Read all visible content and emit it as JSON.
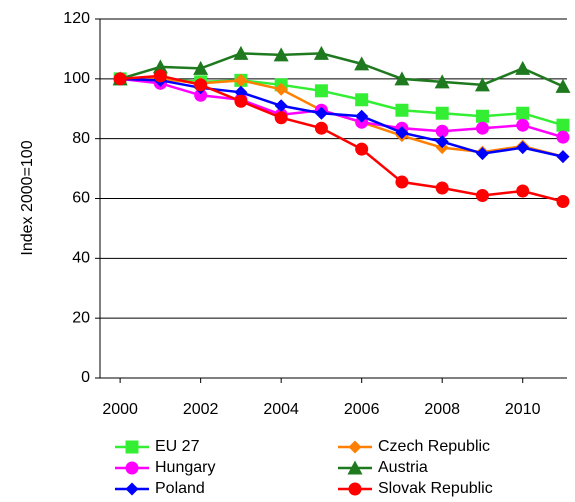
{
  "chart_data": {
    "type": "line",
    "y_label": "Index 2000=100",
    "x": [
      2000,
      2001,
      2002,
      2003,
      2004,
      2005,
      2006,
      2007,
      2008,
      2009,
      2010,
      2011
    ],
    "xlim": [
      1999.5,
      2011.1
    ],
    "xticks": [
      2000,
      2002,
      2004,
      2006,
      2008,
      2010
    ],
    "ylim": [
      0,
      120
    ],
    "yticks": [
      0,
      20,
      40,
      60,
      80,
      100,
      120
    ],
    "grid": true,
    "series": [
      {
        "name": "EU 27",
        "color": "#33ee33",
        "marker": "square",
        "values": [
          100,
          100,
          99,
          99.5,
          98,
          96,
          93,
          89.5,
          88.5,
          87.5,
          88.5,
          84.5
        ]
      },
      {
        "name": "Czech Republic",
        "color": "#ff8000",
        "marker": "diamond",
        "values": [
          100,
          100,
          98.5,
          99.5,
          96.5,
          89.5,
          85.5,
          81,
          77,
          75.5,
          77.5,
          74
        ]
      },
      {
        "name": "Hungary",
        "color": "#ff00ff",
        "marker": "circle",
        "values": [
          100,
          98.5,
          94.5,
          93,
          88,
          89.5,
          85.5,
          83.5,
          82.5,
          83.5,
          84.5,
          80.5
        ]
      },
      {
        "name": "Austria",
        "color": "#1f7a1f",
        "marker": "triangle",
        "values": [
          100,
          104,
          103.5,
          108.5,
          108,
          108.5,
          105,
          100,
          99,
          98,
          103.5,
          97.5
        ]
      },
      {
        "name": "Poland",
        "color": "#0000ff",
        "marker": "diamond",
        "values": [
          100,
          99.5,
          97,
          95.5,
          91,
          88.5,
          87.5,
          82,
          79,
          75,
          77,
          74
        ]
      },
      {
        "name": "Slovak Republic",
        "color": "#ff0000",
        "marker": "circle",
        "values": [
          100,
          101,
          98,
          92.5,
          87,
          83.5,
          76.5,
          65.5,
          63.5,
          61,
          62.5,
          59
        ]
      }
    ]
  }
}
